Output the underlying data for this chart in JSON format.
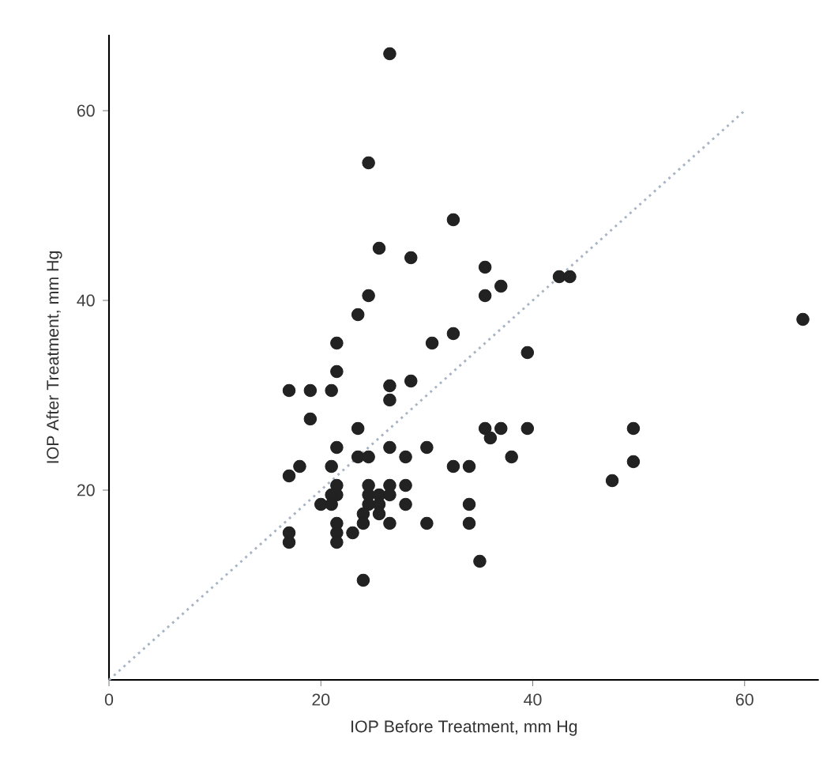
{
  "chart_data": {
    "type": "scatter",
    "xlabel": "IOP Before Treatment, mm Hg",
    "ylabel": "IOP After Treatment, mm Hg",
    "xlim": [
      0,
      67
    ],
    "ylim": [
      0,
      68
    ],
    "xticks": [
      0,
      20,
      40,
      60
    ],
    "yticks": [
      20,
      40,
      60
    ],
    "series": [
      {
        "color": "#222222",
        "marker": "circle",
        "x": [
          26.5,
          24.5,
          32.5,
          25.5,
          28.5,
          35.5,
          37,
          35.5,
          24.5,
          23.5,
          42.5,
          43.5,
          65.5,
          21.5,
          30.5,
          32.5,
          39.5,
          21.5,
          17,
          19,
          21,
          26.5,
          26.5,
          28.5,
          19,
          23.5,
          35.5,
          37,
          36,
          39.5,
          49.5,
          49.5,
          47.5,
          38,
          35,
          21.5,
          23.5,
          24.5,
          26.5,
          28,
          30,
          32.5,
          34,
          17,
          18,
          21,
          21.5,
          21.5,
          21,
          20,
          21,
          24.5,
          24.5,
          24.5,
          25.5,
          26.5,
          28,
          26.5,
          25.5,
          28,
          24,
          25.5,
          24,
          23,
          21.5,
          21.5,
          21.5,
          26.5,
          30,
          34,
          34,
          17,
          17,
          24
        ],
        "values": [
          66,
          54.5,
          48.5,
          45.5,
          44.5,
          43.5,
          41.5,
          40.5,
          40.5,
          38.5,
          42.5,
          42.5,
          38,
          35.5,
          35.5,
          36.5,
          34.5,
          32.5,
          30.5,
          30.5,
          30.5,
          31,
          29.5,
          31.5,
          27.5,
          26.5,
          26.5,
          26.5,
          25.5,
          26.5,
          26.5,
          23,
          21,
          23.5,
          12.5,
          24.5,
          23.5,
          23.5,
          24.5,
          23.5,
          24.5,
          22.5,
          22.5,
          21.5,
          22.5,
          22.5,
          20.5,
          19.5,
          19.5,
          18.5,
          18.5,
          20.5,
          19.5,
          18.5,
          19.5,
          20.5,
          20.5,
          19.5,
          18.5,
          18.5,
          17.5,
          17.5,
          16.5,
          15.5,
          16.5,
          15.5,
          14.5,
          16.5,
          16.5,
          18.5,
          16.5,
          15.5,
          14.5,
          10.5
        ]
      },
      {
        "type": "line",
        "color": "#a8b4c4",
        "line_style": "dotted",
        "marker": "none",
        "x": [
          0,
          60
        ],
        "values": [
          0,
          60
        ]
      }
    ]
  }
}
